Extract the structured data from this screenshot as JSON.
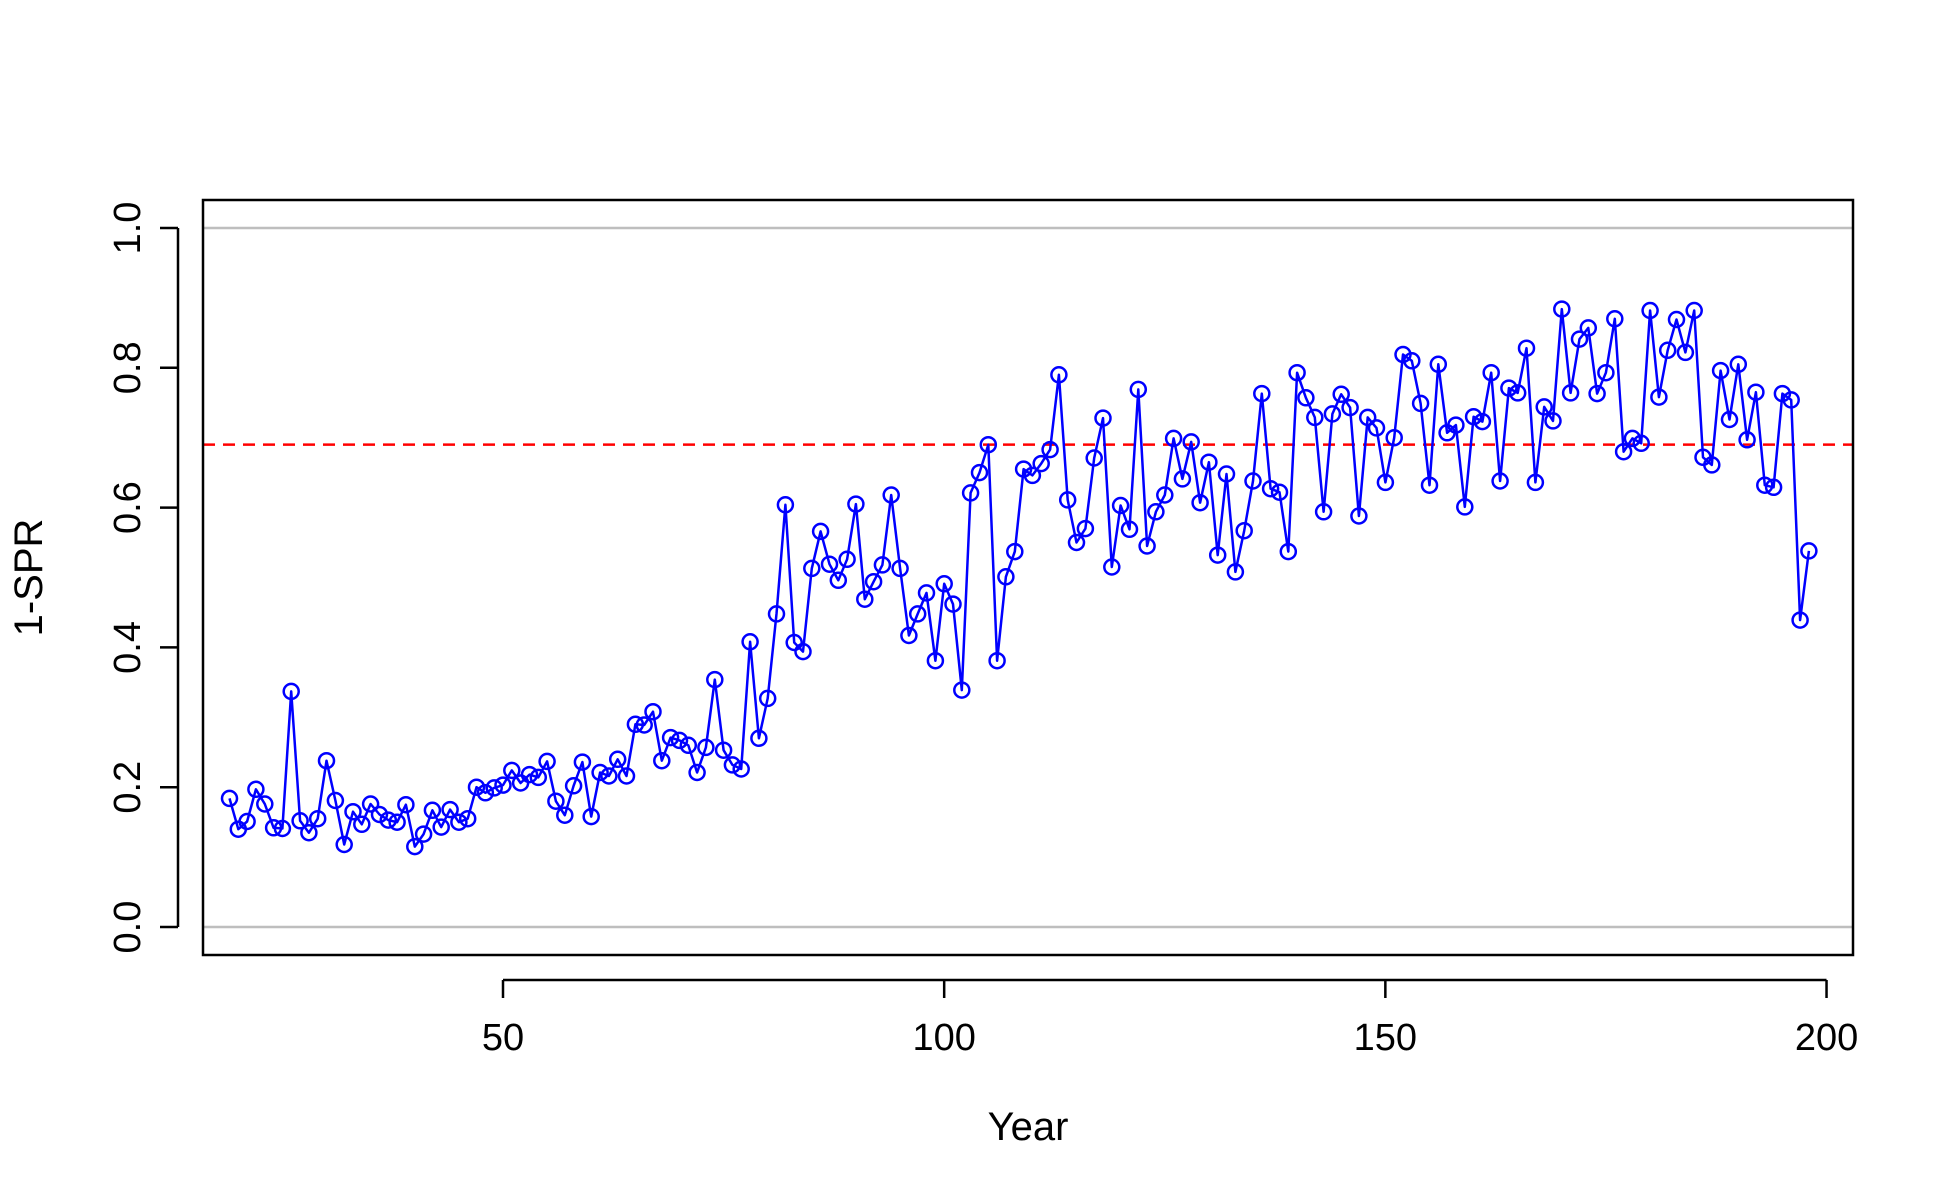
{
  "chart_data": {
    "type": "line",
    "title": "",
    "xlabel": "Year",
    "ylabel": "1-SPR",
    "xlim": [
      16,
      203
    ],
    "ylim": [
      -0.04,
      1.04
    ],
    "x_ticks": [
      {
        "value": 50,
        "label": "50"
      },
      {
        "value": 100,
        "label": "100"
      },
      {
        "value": 150,
        "label": "150"
      },
      {
        "value": 200,
        "label": "200"
      }
    ],
    "y_ticks": [
      {
        "value": 0.0,
        "label": "0.0"
      },
      {
        "value": 0.2,
        "label": "0.2"
      },
      {
        "value": 0.4,
        "label": "0.4"
      },
      {
        "value": 0.6,
        "label": "0.6"
      },
      {
        "value": 0.8,
        "label": "0.8"
      },
      {
        "value": 1.0,
        "label": "1.0"
      }
    ],
    "grid": false,
    "markers": "open-circle",
    "reference_lines": [
      {
        "y": 0.0,
        "color": "#bebebe",
        "style": "solid"
      },
      {
        "y": 1.0,
        "color": "#bebebe",
        "style": "solid"
      },
      {
        "y": 0.69,
        "color": "#ff0000",
        "style": "dashed"
      }
    ],
    "series": [
      {
        "color": "#0000ff",
        "x_start": 19,
        "x_step": 1,
        "values": [
          0.184,
          0.14,
          0.151,
          0.197,
          0.176,
          0.142,
          0.141,
          0.337,
          0.152,
          0.135,
          0.155,
          0.238,
          0.181,
          0.118,
          0.165,
          0.147,
          0.176,
          0.161,
          0.153,
          0.15,
          0.175,
          0.115,
          0.133,
          0.167,
          0.143,
          0.168,
          0.15,
          0.155,
          0.2,
          0.192,
          0.199,
          0.203,
          0.224,
          0.206,
          0.218,
          0.214,
          0.237,
          0.18,
          0.16,
          0.202,
          0.236,
          0.158,
          0.221,
          0.216,
          0.24,
          0.216,
          0.29,
          0.289,
          0.308,
          0.238,
          0.271,
          0.267,
          0.26,
          0.221,
          0.257,
          0.354,
          0.253,
          0.232,
          0.226,
          0.408,
          0.27,
          0.327,
          0.448,
          0.604,
          0.407,
          0.394,
          0.513,
          0.566,
          0.519,
          0.496,
          0.526,
          0.605,
          0.469,
          0.494,
          0.518,
          0.618,
          0.513,
          0.417,
          0.448,
          0.478,
          0.381,
          0.491,
          0.462,
          0.339,
          0.621,
          0.65,
          0.69,
          0.381,
          0.501,
          0.537,
          0.655,
          0.646,
          0.663,
          0.683,
          0.79,
          0.611,
          0.55,
          0.57,
          0.671,
          0.728,
          0.515,
          0.603,
          0.569,
          0.769,
          0.545,
          0.594,
          0.618,
          0.699,
          0.641,
          0.694,
          0.607,
          0.665,
          0.532,
          0.648,
          0.508,
          0.567,
          0.638,
          0.763,
          0.627,
          0.622,
          0.537,
          0.793,
          0.757,
          0.729,
          0.594,
          0.734,
          0.762,
          0.743,
          0.588,
          0.729,
          0.714,
          0.636,
          0.7,
          0.819,
          0.81,
          0.749,
          0.632,
          0.805,
          0.707,
          0.718,
          0.601,
          0.73,
          0.723,
          0.793,
          0.638,
          0.771,
          0.764,
          0.828,
          0.636,
          0.744,
          0.724,
          0.884,
          0.764,
          0.841,
          0.857,
          0.763,
          0.793,
          0.87,
          0.68,
          0.699,
          0.692,
          0.882,
          0.758,
          0.825,
          0.869,
          0.822,
          0.882,
          0.672,
          0.661,
          0.796,
          0.726,
          0.805,
          0.697,
          0.765,
          0.632,
          0.629,
          0.763,
          0.754,
          0.439,
          0.538
        ]
      }
    ]
  }
}
